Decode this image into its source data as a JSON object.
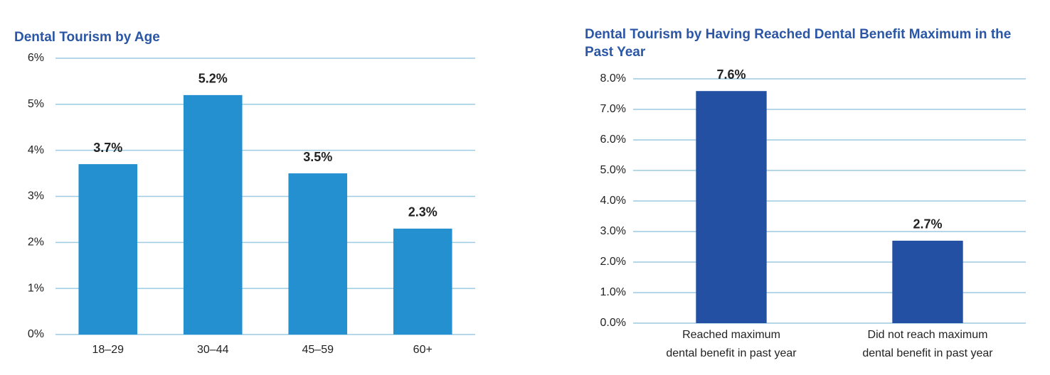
{
  "chart_data": [
    {
      "type": "bar",
      "title": "Dental Tourism by Age",
      "categories": [
        "18–29",
        "30–44",
        "45–59",
        "60+"
      ],
      "values": [
        3.7,
        5.2,
        3.5,
        2.3
      ],
      "value_labels": [
        "3.7%",
        "5.2%",
        "3.5%",
        "2.3%"
      ],
      "color": "#2490d0",
      "ylim": [
        0,
        6
      ],
      "yticks": [
        {
          "value": 0,
          "label": "0%"
        },
        {
          "value": 1,
          "label": "1%"
        },
        {
          "value": 2,
          "label": "2%"
        },
        {
          "value": 3,
          "label": "3%"
        },
        {
          "value": 4,
          "label": "4%"
        },
        {
          "value": 5,
          "label": "5%"
        },
        {
          "value": 6,
          "label": "6%"
        }
      ],
      "grid": true
    },
    {
      "type": "bar",
      "title": "Dental Tourism by Having Reached Dental Benefit Maximum in the Past Year",
      "categories": [
        [
          "Reached maximum",
          "dental benefit in past year"
        ],
        [
          "Did not reach maximum",
          "dental benefit in past year"
        ]
      ],
      "values": [
        7.6,
        2.7
      ],
      "value_labels": [
        "7.6%",
        "2.7%"
      ],
      "color": "#2350a3",
      "ylim": [
        0,
        8
      ],
      "yticks": [
        {
          "value": 0,
          "label": "0.0%"
        },
        {
          "value": 1,
          "label": "1.0%"
        },
        {
          "value": 2,
          "label": "2.0%"
        },
        {
          "value": 3,
          "label": "3.0%"
        },
        {
          "value": 4,
          "label": "4.0%"
        },
        {
          "value": 5,
          "label": "5.0%"
        },
        {
          "value": 6,
          "label": "6.0%"
        },
        {
          "value": 7,
          "label": "7.0%"
        },
        {
          "value": 8,
          "label": "8.0%"
        }
      ],
      "grid": true
    }
  ]
}
